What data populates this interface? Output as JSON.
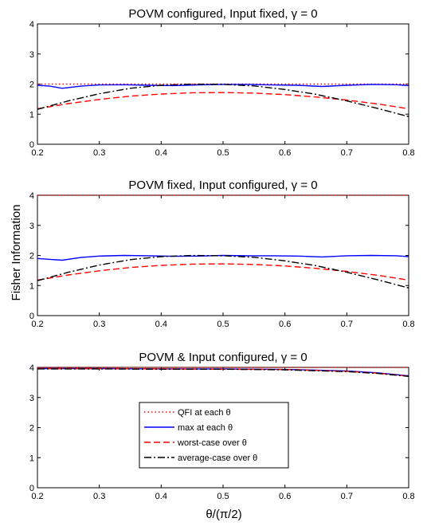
{
  "figure": {
    "ylabel": "Fisher Information",
    "xlabel": "θ/(π/2)"
  },
  "chart_data": [
    {
      "type": "line",
      "title": "POVM configured, Input fixed, γ = 0",
      "xlim": [
        0.2,
        0.8
      ],
      "ylim": [
        0,
        4
      ],
      "xticks": [
        "0.2",
        "0.3",
        "0.4",
        "0.5",
        "0.6",
        "0.7",
        "0.8"
      ],
      "yticks": [
        "0",
        "1",
        "2",
        "3",
        "4"
      ],
      "grid": false,
      "series": [
        {
          "name": "QFI at each θ",
          "color": "#ff0000",
          "style": "dotted",
          "x": [
            0.2,
            0.8
          ],
          "y": [
            2.0,
            2.0
          ]
        },
        {
          "name": "max at each θ",
          "color": "#0000ff",
          "style": "solid",
          "x": [
            0.2,
            0.22,
            0.24,
            0.27,
            0.3,
            0.34,
            0.38,
            0.42,
            0.46,
            0.5,
            0.54,
            0.58,
            0.62,
            0.66,
            0.7,
            0.74,
            0.78,
            0.8
          ],
          "y": [
            1.96,
            1.93,
            1.86,
            1.93,
            1.97,
            1.98,
            1.96,
            1.95,
            1.97,
            1.99,
            1.99,
            1.97,
            1.96,
            1.92,
            1.96,
            1.99,
            1.98,
            1.95
          ]
        },
        {
          "name": "worst-case over θ",
          "color": "#ff0000",
          "style": "dashed",
          "x": [
            0.2,
            0.25,
            0.3,
            0.35,
            0.4,
            0.45,
            0.5,
            0.55,
            0.6,
            0.65,
            0.7,
            0.75,
            0.8
          ],
          "y": [
            1.18,
            1.35,
            1.49,
            1.6,
            1.67,
            1.71,
            1.72,
            1.7,
            1.65,
            1.57,
            1.47,
            1.34,
            1.18
          ]
        },
        {
          "name": "average-case over θ",
          "color": "#000000",
          "style": "dashdot",
          "x": [
            0.2,
            0.25,
            0.3,
            0.35,
            0.4,
            0.45,
            0.5,
            0.55,
            0.6,
            0.65,
            0.7,
            0.75,
            0.8
          ],
          "y": [
            1.16,
            1.44,
            1.68,
            1.86,
            1.96,
            2.0,
            1.99,
            1.94,
            1.82,
            1.66,
            1.44,
            1.19,
            0.92
          ]
        }
      ]
    },
    {
      "type": "line",
      "title": "POVM fixed, Input configured, γ = 0",
      "xlim": [
        0.2,
        0.8
      ],
      "ylim": [
        0,
        4
      ],
      "xticks": [
        "0.2",
        "0.3",
        "0.4",
        "0.5",
        "0.6",
        "0.7",
        "0.8"
      ],
      "yticks": [
        "0",
        "1",
        "2",
        "3",
        "4"
      ],
      "grid": false,
      "series": [
        {
          "name": "QFI at each θ",
          "color": "#ff0000",
          "style": "dotted",
          "x": [
            0.2,
            0.8
          ],
          "y": [
            4.0,
            4.0
          ]
        },
        {
          "name": "max at each θ",
          "color": "#0000ff",
          "style": "solid",
          "x": [
            0.2,
            0.22,
            0.24,
            0.27,
            0.3,
            0.34,
            0.38,
            0.42,
            0.46,
            0.5,
            0.54,
            0.58,
            0.62,
            0.66,
            0.7,
            0.74,
            0.78,
            0.8
          ],
          "y": [
            1.9,
            1.87,
            1.84,
            1.93,
            1.98,
            2.0,
            1.99,
            1.97,
            1.98,
            2.0,
            1.99,
            1.99,
            1.98,
            1.95,
            1.99,
            2.0,
            1.99,
            1.96
          ]
        },
        {
          "name": "worst-case over θ",
          "color": "#ff0000",
          "style": "dashed",
          "x": [
            0.2,
            0.25,
            0.3,
            0.35,
            0.4,
            0.45,
            0.5,
            0.55,
            0.6,
            0.65,
            0.7,
            0.75,
            0.8
          ],
          "y": [
            1.18,
            1.35,
            1.49,
            1.6,
            1.67,
            1.71,
            1.72,
            1.7,
            1.65,
            1.57,
            1.47,
            1.34,
            1.18
          ]
        },
        {
          "name": "average-case over θ",
          "color": "#000000",
          "style": "dashdot",
          "x": [
            0.2,
            0.25,
            0.3,
            0.35,
            0.4,
            0.45,
            0.5,
            0.55,
            0.6,
            0.65,
            0.7,
            0.75,
            0.8
          ],
          "y": [
            1.16,
            1.44,
            1.68,
            1.86,
            1.96,
            2.0,
            1.99,
            1.94,
            1.82,
            1.66,
            1.44,
            1.19,
            0.92
          ]
        }
      ]
    },
    {
      "type": "line",
      "title": "POVM & Input configured, γ = 0",
      "xlim": [
        0.2,
        0.8
      ],
      "ylim": [
        0,
        4
      ],
      "xticks": [
        "0.2",
        "0.3",
        "0.4",
        "0.5",
        "0.6",
        "0.7",
        "0.8"
      ],
      "yticks": [
        "0",
        "1",
        "2",
        "3",
        "4"
      ],
      "grid": false,
      "legend": "lower-center",
      "series": [
        {
          "name": "QFI at each θ",
          "color": "#ff0000",
          "style": "dotted",
          "x": [
            0.2,
            0.8
          ],
          "y": [
            4.0,
            4.0
          ]
        },
        {
          "name": "max at each θ",
          "color": "#0000ff",
          "style": "solid",
          "x": [
            0.2,
            0.3,
            0.4,
            0.5,
            0.6,
            0.65,
            0.7,
            0.75,
            0.8
          ],
          "y": [
            3.96,
            3.96,
            3.95,
            3.95,
            3.93,
            3.91,
            3.88,
            3.82,
            3.72
          ]
        },
        {
          "name": "worst-case over θ",
          "color": "#ff0000",
          "style": "dashed",
          "x": [
            0.2,
            0.3,
            0.4,
            0.5,
            0.6,
            0.65,
            0.7,
            0.75,
            0.8
          ],
          "y": [
            3.96,
            3.96,
            3.95,
            3.94,
            3.93,
            3.9,
            3.87,
            3.81,
            3.71
          ]
        },
        {
          "name": "average-case over θ",
          "color": "#000000",
          "style": "dashdot",
          "x": [
            0.2,
            0.3,
            0.4,
            0.5,
            0.6,
            0.65,
            0.7,
            0.75,
            0.8
          ],
          "y": [
            3.95,
            3.95,
            3.94,
            3.94,
            3.92,
            3.89,
            3.86,
            3.8,
            3.7
          ]
        }
      ]
    }
  ]
}
